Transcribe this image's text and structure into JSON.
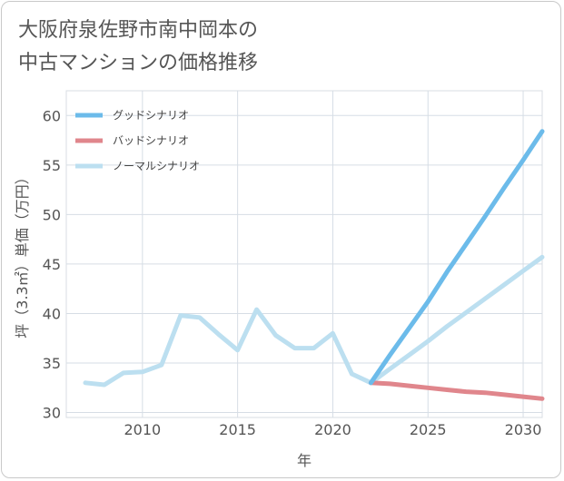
{
  "chart_data": {
    "type": "line",
    "title_lines": [
      "大阪府泉佐野市南中岡本の",
      "中古マンションの価格推移"
    ],
    "xlabel": "年",
    "ylabel": "坪（3.3㎡）単価（万円）",
    "xlim": [
      2006,
      2031
    ],
    "ylim": [
      29.5,
      62.5
    ],
    "x_ticks": [
      2010,
      2015,
      2020,
      2025,
      2030
    ],
    "y_ticks": [
      30,
      35,
      40,
      45,
      50,
      55,
      60
    ],
    "grid": true,
    "legend_position": "top-left",
    "series": [
      {
        "name": "グッドシナリオ",
        "color": "#6cbbea",
        "x": [
          2022,
          2023,
          2024,
          2025,
          2026,
          2027,
          2028,
          2029,
          2030,
          2031
        ],
        "values": [
          33.0,
          35.8,
          38.5,
          41.2,
          44.2,
          47.0,
          49.8,
          52.7,
          55.5,
          58.4
        ]
      },
      {
        "name": "バッドシナリオ",
        "color": "#e0868c",
        "x": [
          2022,
          2023,
          2024,
          2025,
          2026,
          2027,
          2028,
          2029,
          2030,
          2031
        ],
        "values": [
          33.0,
          32.9,
          32.7,
          32.5,
          32.3,
          32.1,
          32.0,
          31.8,
          31.6,
          31.4
        ]
      },
      {
        "name": "ノーマルシナリオ",
        "color": "#bcdff0",
        "x": [
          2007,
          2008,
          2009,
          2010,
          2011,
          2012,
          2013,
          2014,
          2015,
          2016,
          2017,
          2018,
          2019,
          2020,
          2021,
          2022,
          2023,
          2024,
          2025,
          2026,
          2027,
          2028,
          2029,
          2030,
          2031
        ],
        "values": [
          33.0,
          32.8,
          34.0,
          34.1,
          34.8,
          39.8,
          39.6,
          37.9,
          36.3,
          40.4,
          37.8,
          36.5,
          36.5,
          38.0,
          33.9,
          33.0,
          34.4,
          35.8,
          37.2,
          38.7,
          40.1,
          41.5,
          42.9,
          44.3,
          45.7
        ]
      }
    ]
  }
}
